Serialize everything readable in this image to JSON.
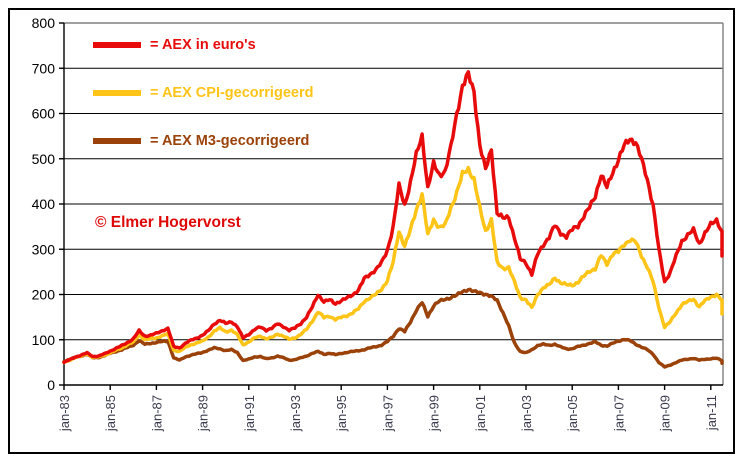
{
  "watermark": {
    "text": "© Elmer Hogervorst",
    "color": "#e00707"
  },
  "legend": {
    "items": [
      {
        "label": "= AEX in euro's",
        "color": "#e80b0b"
      },
      {
        "label": "= AEX CPI-gecorrigeerd",
        "color": "#fec417"
      },
      {
        "label": "= AEX M3-gecorrigeerd",
        "color": "#9a4209"
      }
    ]
  },
  "chart_data": {
    "type": "line",
    "title": "",
    "xlabel": "",
    "ylabel": "",
    "ylim": [
      0,
      800
    ],
    "grid": "horizontal",
    "grid_color": "#000000",
    "plot_border_color": "#808080",
    "axis_color": "#000000",
    "x_label_color": "#3b3b4f",
    "y_label_color": "#000000",
    "legend_position": "top-left-inside",
    "x_start_year": 1983,
    "x_step_years": 0.25,
    "x_tick_labels": [
      "jan-83",
      "jan-85",
      "jan-87",
      "jan-89",
      "jan-91",
      "jan-93",
      "jan-95",
      "jan-97",
      "jan-99",
      "jan-01",
      "jan-03",
      "jan-05",
      "jan-07",
      "jan-09",
      "jan-11"
    ],
    "y_ticks": [
      0,
      100,
      200,
      300,
      400,
      500,
      600,
      700,
      800
    ],
    "series": [
      {
        "name": "AEX in euro's",
        "color": "#e80b0b",
        "values": [
          50,
          56,
          62,
          66,
          71,
          63,
          64,
          69,
          75,
          81,
          87,
          94,
          102,
          120,
          108,
          110,
          114,
          120,
          125,
          85,
          82,
          92,
          99,
          104,
          110,
          120,
          135,
          143,
          136,
          140,
          129,
          104,
          112,
          123,
          128,
          121,
          126,
          135,
          129,
          121,
          126,
          136,
          150,
          172,
          200,
          184,
          188,
          180,
          186,
          192,
          200,
          210,
          235,
          245,
          255,
          270,
          298,
          350,
          440,
          398,
          448,
          508,
          552,
          435,
          488,
          465,
          472,
          525,
          600,
          660,
          685,
          650,
          530,
          475,
          522,
          380,
          368,
          372,
          325,
          278,
          270,
          245,
          288,
          310,
          327,
          352,
          336,
          328,
          343,
          352,
          373,
          392,
          418,
          465,
          436,
          470,
          498,
          528,
          545,
          536,
          498,
          455,
          398,
          300,
          228,
          250,
          285,
          318,
          332,
          342,
          312,
          336,
          354,
          365,
          338,
          285
        ]
      },
      {
        "name": "AEX CPI-gecorrigeerd",
        "color": "#fec417",
        "values": [
          50,
          55,
          61,
          64,
          69,
          61,
          62,
          66,
          71,
          77,
          82,
          89,
          95,
          111,
          100,
          102,
          104,
          109,
          113,
          77,
          74,
          83,
          89,
          93,
          97,
          106,
          119,
          126,
          118,
          121,
          111,
          89,
          95,
          104,
          108,
          102,
          105,
          113,
          108,
          101,
          104,
          112,
          123,
          141,
          162,
          149,
          152,
          145,
          149,
          153,
          160,
          168,
          185,
          193,
          200,
          212,
          231,
          271,
          340,
          307,
          342,
          388,
          422,
          331,
          366,
          348,
          353,
          392,
          425,
          465,
          478,
          455,
          390,
          340,
          365,
          270,
          258,
          260,
          227,
          194,
          188,
          170,
          200,
          215,
          221,
          237,
          226,
          221,
          221,
          227,
          240,
          252,
          257,
          286,
          268,
          289,
          294,
          311,
          321,
          316,
          286,
          261,
          228,
          172,
          128,
          140,
          160,
          178,
          184,
          190,
          173,
          186,
          195,
          200,
          186,
          157
        ]
      },
      {
        "name": "AEX M3-gecorrigeerd",
        "color": "#9a4209",
        "values": [
          52,
          57,
          61,
          64,
          68,
          60,
          61,
          65,
          70,
          74,
          78,
          83,
          88,
          98,
          90,
          92,
          94,
          96,
          97,
          60,
          55,
          62,
          66,
          69,
          72,
          77,
          82,
          80,
          76,
          78,
          72,
          54,
          57,
          62,
          63,
          58,
          60,
          64,
          60,
          55,
          56,
          60,
          64,
          70,
          74,
          68,
          70,
          67,
          70,
          72,
          74,
          76,
          78,
          82,
          85,
          88,
          96,
          108,
          125,
          118,
          140,
          165,
          182,
          152,
          175,
          185,
          190,
          193,
          198,
          207,
          211,
          206,
          205,
          200,
          195,
          188,
          160,
          130,
          93,
          74,
          71,
          78,
          87,
          90,
          88,
          90,
          84,
          80,
          80,
          85,
          88,
          92,
          95,
          88,
          86,
          92,
          97,
          101,
          98,
          90,
          84,
          78,
          68,
          50,
          40,
          44,
          50,
          55,
          57,
          59,
          55,
          57,
          58,
          59,
          54,
          48
        ]
      }
    ]
  }
}
